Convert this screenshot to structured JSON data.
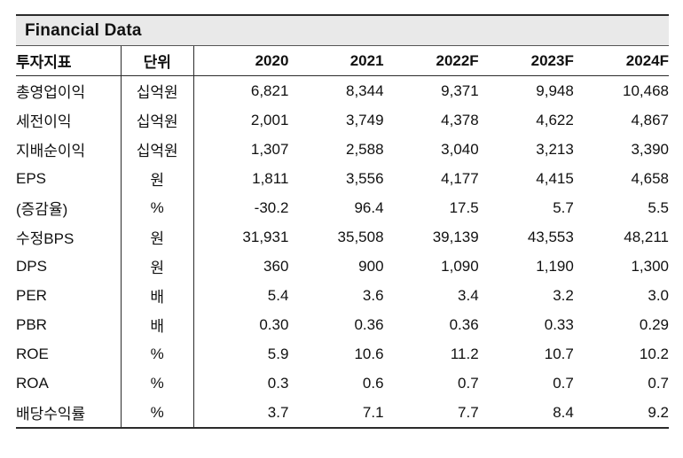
{
  "title": "Financial Data",
  "colors": {
    "title_bg": "#e9e9e9",
    "border": "#2b2b2b",
    "text": "#111111"
  },
  "table": {
    "headers": [
      "투자지표",
      "단위",
      "2020",
      "2021",
      "2022F",
      "2023F",
      "2024F"
    ],
    "rows": [
      {
        "indicator": "총영업이익",
        "unit": "십억원",
        "values": [
          "6,821",
          "8,344",
          "9,371",
          "9,948",
          "10,468"
        ]
      },
      {
        "indicator": "세전이익",
        "unit": "십억원",
        "values": [
          "2,001",
          "3,749",
          "4,378",
          "4,622",
          "4,867"
        ]
      },
      {
        "indicator": "지배순이익",
        "unit": "십억원",
        "values": [
          "1,307",
          "2,588",
          "3,040",
          "3,213",
          "3,390"
        ]
      },
      {
        "indicator": "EPS",
        "unit": "원",
        "values": [
          "1,811",
          "3,556",
          "4,177",
          "4,415",
          "4,658"
        ]
      },
      {
        "indicator": "(증감율)",
        "unit": "%",
        "values": [
          "-30.2",
          "96.4",
          "17.5",
          "5.7",
          "5.5"
        ]
      },
      {
        "indicator": "수정BPS",
        "unit": "원",
        "values": [
          "31,931",
          "35,508",
          "39,139",
          "43,553",
          "48,211"
        ]
      },
      {
        "indicator": "DPS",
        "unit": "원",
        "values": [
          "360",
          "900",
          "1,090",
          "1,190",
          "1,300"
        ]
      },
      {
        "indicator": "PER",
        "unit": "배",
        "values": [
          "5.4",
          "3.6",
          "3.4",
          "3.2",
          "3.0"
        ]
      },
      {
        "indicator": "PBR",
        "unit": "배",
        "values": [
          "0.30",
          "0.36",
          "0.36",
          "0.33",
          "0.29"
        ]
      },
      {
        "indicator": "ROE",
        "unit": "%",
        "values": [
          "5.9",
          "10.6",
          "11.2",
          "10.7",
          "10.2"
        ]
      },
      {
        "indicator": "ROA",
        "unit": "%",
        "values": [
          "0.3",
          "0.6",
          "0.7",
          "0.7",
          "0.7"
        ]
      },
      {
        "indicator": "배당수익률",
        "unit": "%",
        "values": [
          "3.7",
          "7.1",
          "7.7",
          "8.4",
          "9.2"
        ]
      }
    ]
  }
}
